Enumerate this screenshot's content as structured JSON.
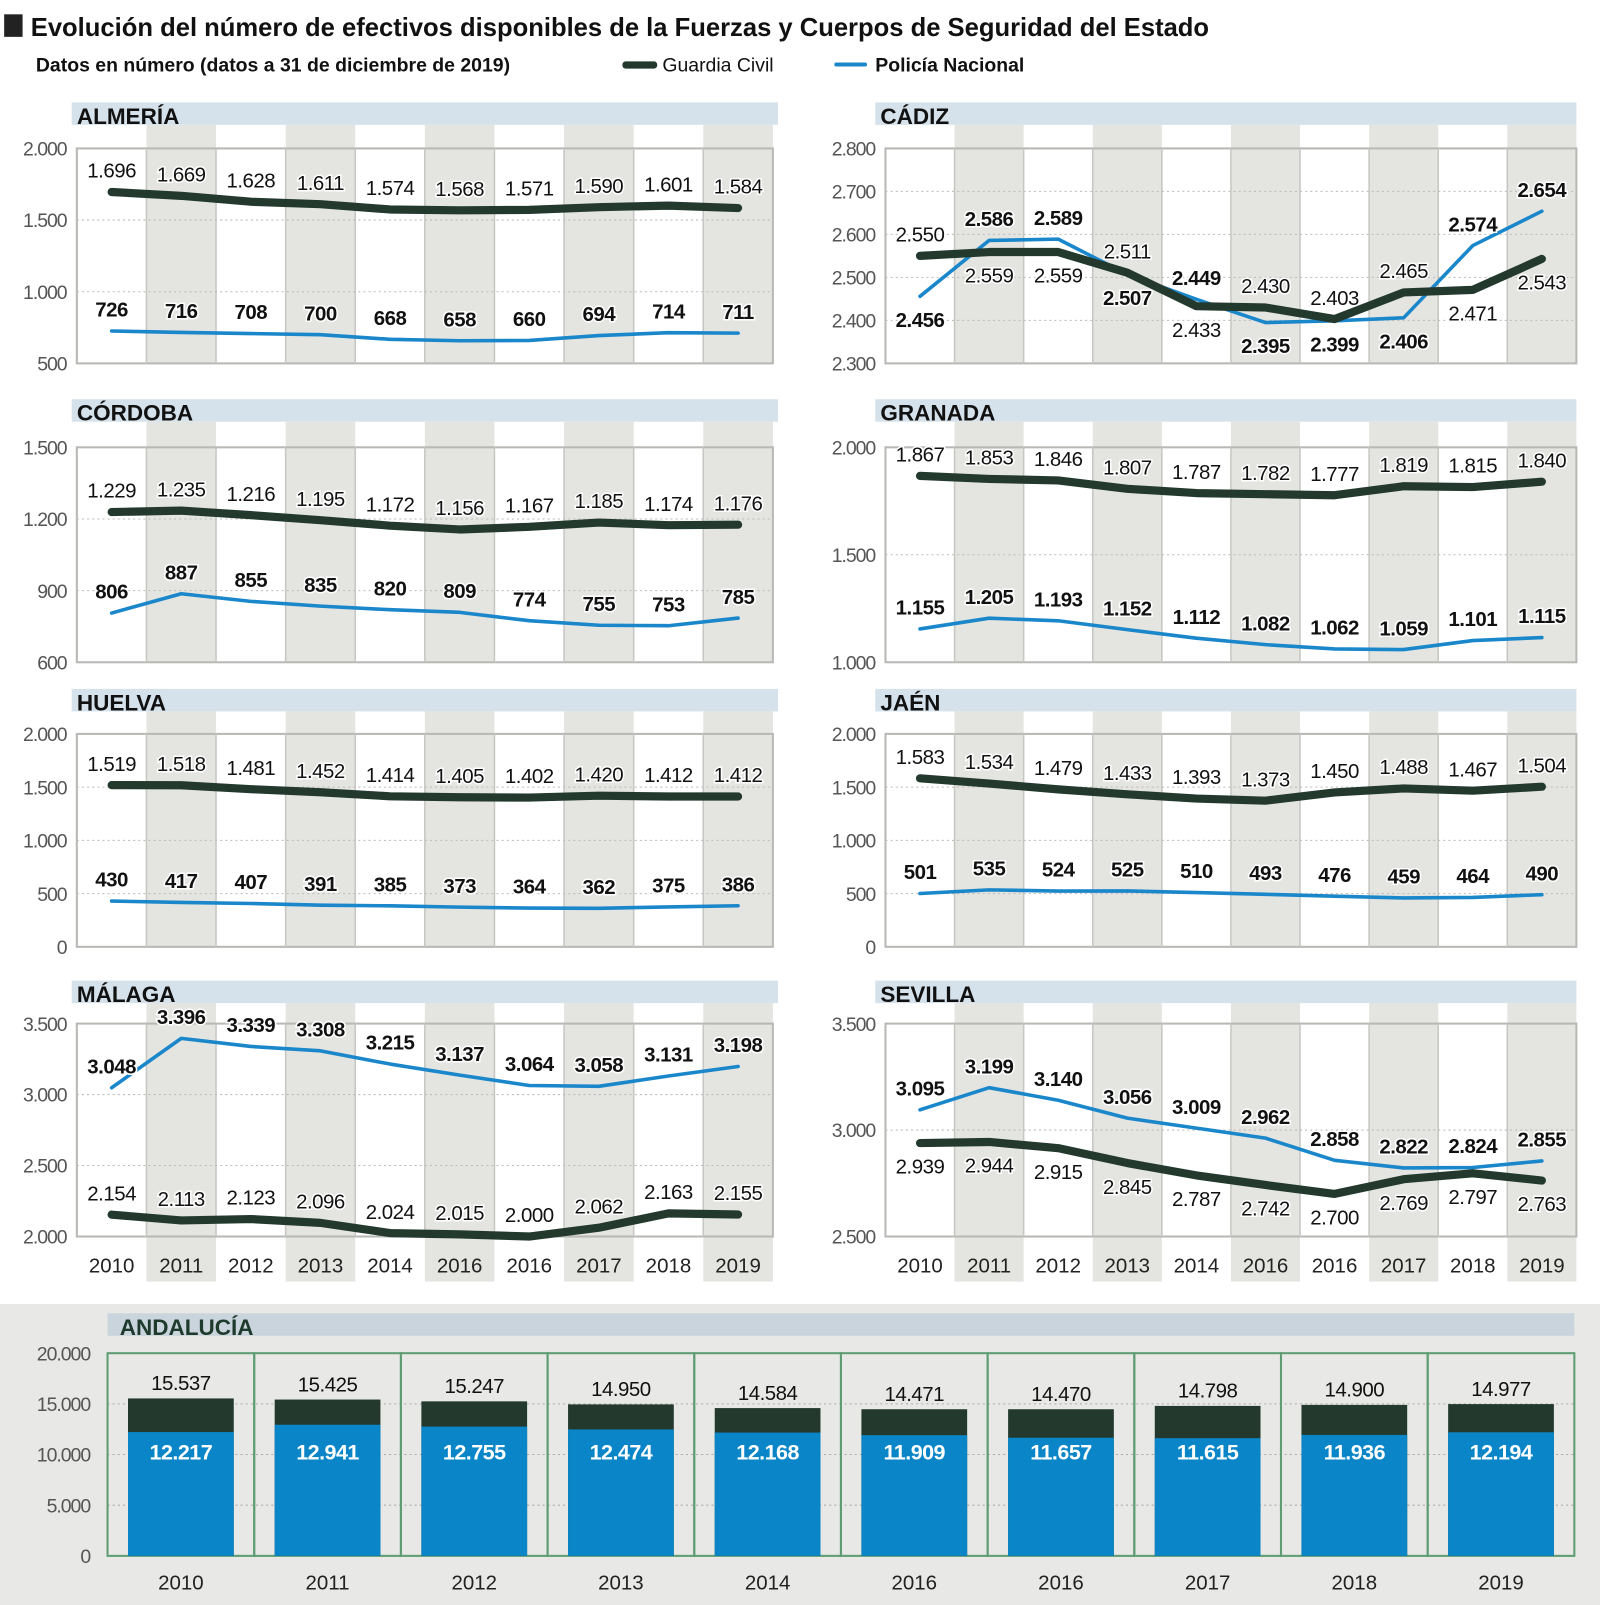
{
  "title": "Evolución del número de efectivos disponibles de la Fuerzas y Cuerpos de Seguridad del Estado",
  "subtitle": "Datos en número (datos a 31 de diciembre de 2019)",
  "legend": {
    "gc": "Guardia Civil",
    "pn": "Policía Nacional"
  },
  "colors": {
    "gc": "#23392e",
    "pn": "#1b87cb",
    "bar_pn": "#0a86c8",
    "header": "#d6e2eb",
    "stripe": "#e4e4e1"
  },
  "chart_data": {
    "type": "line",
    "years": [
      "2010",
      "2011",
      "2012",
      "2013",
      "2014",
      "2016",
      "2016",
      "2017",
      "2018",
      "2019"
    ],
    "series_names": [
      "Guardia Civil",
      "Policía Nacional"
    ],
    "panels": [
      {
        "name": "ALMERÍA",
        "ylim": [
          500,
          2000
        ],
        "yticks": [
          500,
          1000,
          1500,
          2000
        ],
        "gc": [
          1696,
          1669,
          1628,
          1611,
          1574,
          1568,
          1571,
          1590,
          1601,
          1584
        ],
        "pn": [
          726,
          716,
          708,
          700,
          668,
          658,
          660,
          694,
          714,
          711
        ]
      },
      {
        "name": "CÁDIZ",
        "ylim": [
          2300,
          2800
        ],
        "yticks": [
          2300,
          2400,
          2500,
          2600,
          2700,
          2800
        ],
        "gc": [
          2550,
          2559,
          2559,
          2511,
          2433,
          2430,
          2403,
          2465,
          2471,
          2543
        ],
        "pn": [
          2456,
          2586,
          2589,
          2507,
          2449,
          2395,
          2399,
          2406,
          2574,
          2654
        ]
      },
      {
        "name": "CÓRDOBA",
        "ylim": [
          600,
          1500
        ],
        "yticks": [
          600,
          900,
          1200,
          1500
        ],
        "gc": [
          1229,
          1235,
          1216,
          1195,
          1172,
          1156,
          1167,
          1185,
          1174,
          1176
        ],
        "pn": [
          806,
          887,
          855,
          835,
          820,
          809,
          774,
          755,
          753,
          785
        ]
      },
      {
        "name": "GRANADA",
        "ylim": [
          1000,
          2000
        ],
        "yticks": [
          1000,
          1500,
          2000
        ],
        "gc": [
          1867,
          1853,
          1846,
          1807,
          1787,
          1782,
          1777,
          1819,
          1815,
          1840
        ],
        "pn": [
          1155,
          1205,
          1193,
          1152,
          1112,
          1082,
          1062,
          1059,
          1101,
          1115
        ]
      },
      {
        "name": "HUELVA",
        "ylim": [
          0,
          2000
        ],
        "yticks": [
          0,
          500,
          1000,
          1500,
          2000
        ],
        "gc": [
          1519,
          1518,
          1481,
          1452,
          1414,
          1405,
          1402,
          1420,
          1412,
          1412
        ],
        "pn": [
          430,
          417,
          407,
          391,
          385,
          373,
          364,
          362,
          375,
          386
        ]
      },
      {
        "name": "JAÉN",
        "ylim": [
          0,
          2000
        ],
        "yticks": [
          0,
          500,
          1000,
          1500,
          2000
        ],
        "gc": [
          1583,
          1534,
          1479,
          1433,
          1393,
          1373,
          1450,
          1488,
          1467,
          1504
        ],
        "pn": [
          501,
          535,
          524,
          525,
          510,
          493,
          476,
          459,
          464,
          490
        ]
      },
      {
        "name": "MÁLAGA",
        "ylim": [
          2000,
          3500
        ],
        "yticks": [
          2000,
          2500,
          3000,
          3500
        ],
        "gc": [
          2154,
          2113,
          2123,
          2096,
          2024,
          2015,
          2000,
          2062,
          2163,
          2155
        ],
        "pn": [
          3048,
          3396,
          3339,
          3308,
          3215,
          3137,
          3064,
          3058,
          3131,
          3198
        ]
      },
      {
        "name": "SEVILLA",
        "ylim": [
          2500,
          3500
        ],
        "yticks": [
          2500,
          3000,
          3500
        ],
        "gc": [
          2939,
          2944,
          2915,
          2845,
          2787,
          2742,
          2700,
          2769,
          2797,
          2763
        ],
        "pn": [
          3095,
          3199,
          3140,
          3056,
          3009,
          2962,
          2858,
          2822,
          2824,
          2855
        ]
      }
    ],
    "andalucia": {
      "type": "bar",
      "name": "ANDALUCÍA",
      "ylim": [
        0,
        20000
      ],
      "yticks": [
        0,
        5000,
        10000,
        15000,
        20000
      ],
      "gc": [
        15537,
        15425,
        15247,
        14950,
        14584,
        14471,
        14470,
        14798,
        14900,
        14977
      ],
      "pn": [
        12217,
        12941,
        12755,
        12474,
        12168,
        11909,
        11657,
        11615,
        11936,
        12194
      ]
    }
  }
}
